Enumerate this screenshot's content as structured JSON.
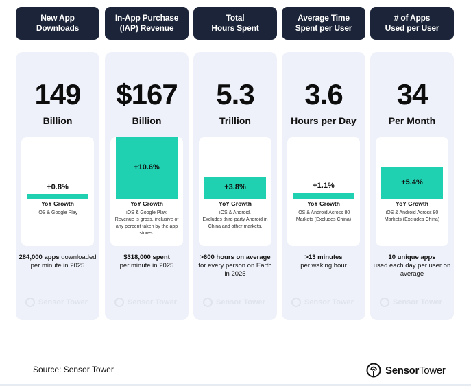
{
  "columns": [
    {
      "header": "New App\nDownloads",
      "value": "149",
      "unit": "Billion",
      "growth": "+0.8%",
      "growth_fraction": 0.008,
      "yoy_label": "YoY Growth",
      "note": "iOS & Google Play",
      "footer_strong": "284,000 apps",
      "footer_rest": "downloaded per minute in 2025"
    },
    {
      "header": "In-App Purchase\n(IAP) Revenue",
      "value": "$167",
      "unit": "Billion",
      "growth": "+10.6%",
      "growth_fraction": 0.106,
      "yoy_label": "YoY Growth",
      "note": "iOS & Google Play.\nRevenue is gross, inclusive of any percent taken by the app stores.",
      "footer_strong": "$318,000 spent",
      "footer_rest": "per minute in 2025"
    },
    {
      "header": "Total\nHours Spent",
      "value": "5.3",
      "unit": "Trillion",
      "growth": "+3.8%",
      "growth_fraction": 0.038,
      "yoy_label": "YoY Growth",
      "note": "iOS & Android.\nExcludes third-party Android in China and other markets.",
      "footer_strong": ">600 hours on average",
      "footer_rest": "for every person on Earth in 2025"
    },
    {
      "header": "Average Time\nSpent per User",
      "value": "3.6",
      "unit": "Hours per Day",
      "growth": "+1.1%",
      "growth_fraction": 0.011,
      "yoy_label": "YoY Growth",
      "note": "iOS & Android Across 80 Markets (Excludes China)",
      "footer_strong": ">13 minutes",
      "footer_rest": "per waking hour"
    },
    {
      "header": "# of Apps\nUsed per User",
      "value": "34",
      "unit": "Per Month",
      "growth": "+5.4%",
      "growth_fraction": 0.054,
      "yoy_label": "YoY Growth",
      "note": "iOS & Android Across 80 Markets (Excludes China)",
      "footer_strong": "10 unique apps",
      "footer_rest": "used each day per user on average"
    }
  ],
  "watermark": "Sensor Tower",
  "source": "Source: Sensor Tower",
  "brand": {
    "name_bold": "Sensor",
    "name_light": "Tower"
  },
  "colors": {
    "header_bg": "#1b2438",
    "bar": "#1fd1b0",
    "card_bg": "#eef1f9"
  }
}
